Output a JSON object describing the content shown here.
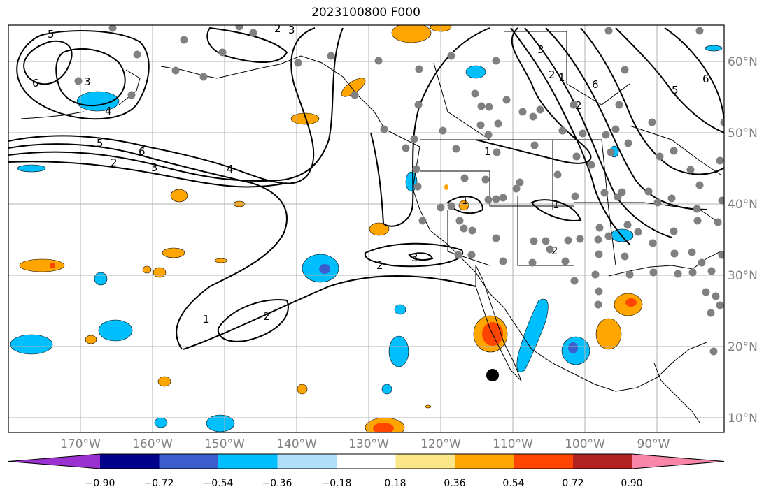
{
  "title": "2023100800 F000",
  "lon_labels": [
    "170°W",
    "160°W",
    "150°W",
    "140°W",
    "130°W",
    "120°W",
    "110°W",
    "100°W",
    "90°W"
  ],
  "lat_labels": [
    "60°N",
    "50°N",
    "40°N",
    "30°N",
    "20°N",
    "10°N"
  ],
  "colorbar": {
    "ticks": [
      "−0.90",
      "−0.72",
      "−0.54",
      "−0.36",
      "−0.18",
      "0.18",
      "0.36",
      "0.54",
      "0.72",
      "0.90"
    ],
    "colors": [
      "#9b30d0",
      "#00008b",
      "#3a5fcd",
      "#00bfff",
      "#b0e0f7",
      "#ffffff",
      "#fbe68a",
      "#ffa500",
      "#ff4500",
      "#b22222",
      "#f986a8"
    ]
  },
  "contour_labels": [
    "5",
    "3",
    "2",
    "6",
    "3",
    "4",
    "5",
    "6",
    "2",
    "3",
    "4",
    "1",
    "2",
    "1",
    "2",
    "3",
    "2",
    "1",
    "1",
    "2",
    "1",
    "3",
    "2",
    "6",
    "5",
    "6"
  ],
  "colors": {
    "obs_marker": "#808080",
    "center_marker": "#000000",
    "grid": "#b0b0b0"
  }
}
